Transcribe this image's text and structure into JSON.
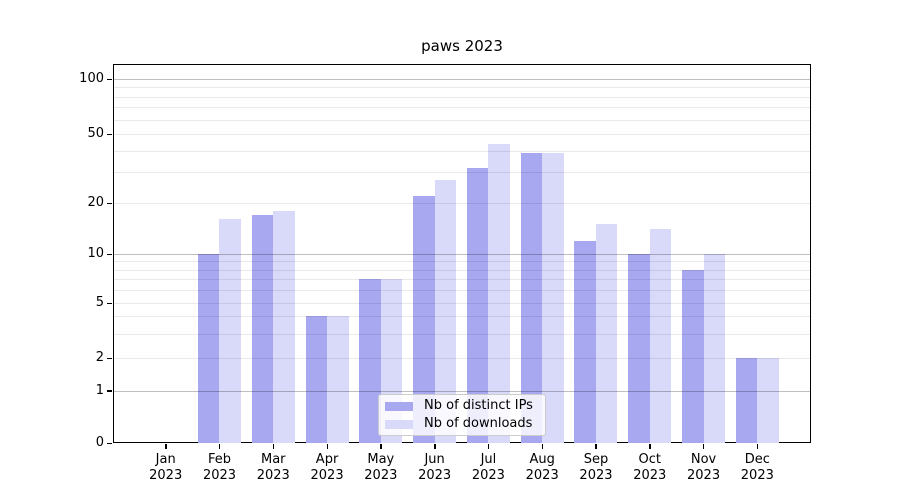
{
  "title": "paws 2023",
  "chart_data": {
    "type": "bar",
    "title": "paws 2023",
    "categories": [
      "Jan",
      "Feb",
      "Mar",
      "Apr",
      "May",
      "Jun",
      "Jul",
      "Aug",
      "Sep",
      "Oct",
      "Nov",
      "Dec"
    ],
    "category_year": "2023",
    "series": [
      {
        "name": "Nb of distinct IPs",
        "color": "#a8a8f0",
        "values": [
          0,
          10,
          17,
          4,
          7,
          22,
          32,
          39,
          12,
          10,
          8,
          2
        ]
      },
      {
        "name": "Nb of downloads",
        "color": "#d9d9fa",
        "values": [
          0,
          16,
          18,
          4,
          7,
          27,
          44,
          39,
          15,
          14,
          10,
          2
        ]
      }
    ],
    "xlabel": "",
    "ylabel": "",
    "yscale": "log-like",
    "ylim": [
      0,
      120
    ],
    "yticks": [
      0,
      1,
      2,
      5,
      10,
      20,
      50,
      100
    ],
    "ytick_major": [
      1,
      10,
      100
    ],
    "ytick_minor": [
      3,
      4,
      6,
      7,
      8,
      9,
      30,
      40,
      60,
      70,
      80,
      90
    ],
    "grid": true,
    "legend_position": "lower center"
  }
}
